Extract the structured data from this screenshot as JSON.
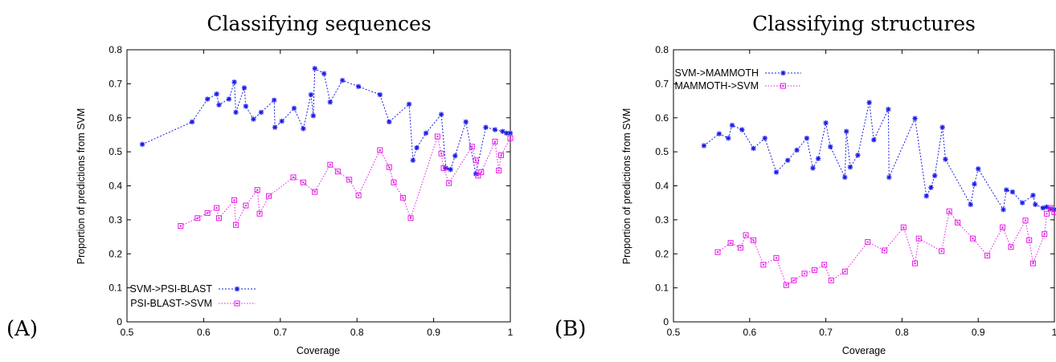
{
  "colors": {
    "series_a": "#1a1ae6",
    "series_b": "#e61ae6",
    "axis": "#000000"
  },
  "panels": [
    {
      "label": "(A)",
      "title": "Classifying sequences",
      "xlabel": "Coverage",
      "ylabel": "Proportion of predictions from SVM",
      "xlim": [
        0.5,
        1.0
      ],
      "ylim": [
        0,
        0.8
      ],
      "xticks": [
        "0.5",
        "0.6",
        "0.7",
        "0.8",
        "0.9",
        "1"
      ],
      "yticks": [
        "0",
        "0.1",
        "0.2",
        "0.3",
        "0.4",
        "0.5",
        "0.6",
        "0.7",
        "0.8"
      ],
      "legend": {
        "position": "bottom-left",
        "entries": [
          "SVM->PSI-BLAST",
          "PSI-BLAST->SVM"
        ]
      }
    },
    {
      "label": "(B)",
      "title": "Classifying structures",
      "xlabel": "Coverage",
      "ylabel": "Proportion of predictions from SVM",
      "xlim": [
        0.5,
        1.0
      ],
      "ylim": [
        0,
        0.8
      ],
      "xticks": [
        "0.5",
        "0.6",
        "0.7",
        "0.8",
        "0.9",
        "1"
      ],
      "yticks": [
        "0",
        "0.1",
        "0.2",
        "0.3",
        "0.4",
        "0.5",
        "0.6",
        "0.7",
        "0.8"
      ],
      "legend": {
        "position": "top-left",
        "entries": [
          "SVM->MAMMOTH",
          "MAMMOTH->SVM"
        ]
      }
    }
  ],
  "chart_data": [
    {
      "type": "line",
      "title": "Classifying sequences",
      "xlabel": "Coverage",
      "ylabel": "Proportion of predictions from SVM",
      "xlim": [
        0.5,
        1.0
      ],
      "ylim": [
        0,
        0.8
      ],
      "grid": false,
      "legend": "bottom-left",
      "series": [
        {
          "name": "SVM->PSI-BLAST",
          "marker": "asterisk",
          "x": [
            0.52,
            0.585,
            0.605,
            0.617,
            0.62,
            0.633,
            0.64,
            0.642,
            0.653,
            0.655,
            0.665,
            0.675,
            0.692,
            0.693,
            0.702,
            0.718,
            0.73,
            0.74,
            0.743,
            0.745,
            0.757,
            0.765,
            0.781,
            0.802,
            0.83,
            0.842,
            0.868,
            0.873,
            0.878,
            0.89,
            0.91,
            0.916,
            0.922,
            0.928,
            0.942,
            0.955,
            0.968,
            0.98,
            0.99,
            0.995,
            1.0
          ],
          "y": [
            0.522,
            0.588,
            0.655,
            0.67,
            0.638,
            0.655,
            0.705,
            0.616,
            0.688,
            0.634,
            0.596,
            0.616,
            0.652,
            0.572,
            0.59,
            0.628,
            0.568,
            0.668,
            0.606,
            0.745,
            0.73,
            0.646,
            0.71,
            0.692,
            0.668,
            0.588,
            0.64,
            0.475,
            0.512,
            0.555,
            0.61,
            0.452,
            0.448,
            0.488,
            0.588,
            0.435,
            0.572,
            0.565,
            0.56,
            0.555,
            0.555
          ]
        },
        {
          "name": "PSI-BLAST->SVM",
          "marker": "square",
          "x": [
            0.57,
            0.592,
            0.605,
            0.617,
            0.62,
            0.64,
            0.642,
            0.655,
            0.67,
            0.673,
            0.685,
            0.717,
            0.73,
            0.745,
            0.765,
            0.775,
            0.79,
            0.802,
            0.83,
            0.842,
            0.848,
            0.86,
            0.87,
            0.905,
            0.91,
            0.913,
            0.92,
            0.95,
            0.955,
            0.958,
            0.962,
            0.98,
            0.985,
            0.988,
            1.0
          ],
          "y": [
            0.282,
            0.305,
            0.32,
            0.335,
            0.305,
            0.358,
            0.285,
            0.342,
            0.388,
            0.318,
            0.37,
            0.425,
            0.41,
            0.382,
            0.462,
            0.442,
            0.418,
            0.372,
            0.505,
            0.455,
            0.41,
            0.365,
            0.305,
            0.545,
            0.495,
            0.452,
            0.408,
            0.515,
            0.475,
            0.43,
            0.44,
            0.53,
            0.445,
            0.49,
            0.54
          ]
        }
      ]
    },
    {
      "type": "line",
      "title": "Classifying structures",
      "xlabel": "Coverage",
      "ylabel": "Proportion of predictions from SVM",
      "xlim": [
        0.5,
        1.0
      ],
      "ylim": [
        0,
        0.8
      ],
      "grid": false,
      "legend": "top-left",
      "series": [
        {
          "name": "SVM->MAMMOTH",
          "marker": "asterisk",
          "x": [
            0.54,
            0.56,
            0.572,
            0.577,
            0.59,
            0.605,
            0.62,
            0.635,
            0.65,
            0.662,
            0.675,
            0.683,
            0.69,
            0.7,
            0.706,
            0.725,
            0.727,
            0.732,
            0.742,
            0.757,
            0.763,
            0.782,
            0.783,
            0.817,
            0.832,
            0.838,
            0.843,
            0.853,
            0.857,
            0.89,
            0.895,
            0.9,
            0.933,
            0.937,
            0.945,
            0.958,
            0.972,
            0.975,
            0.985,
            0.99,
            0.995,
            1.0
          ],
          "y": [
            0.518,
            0.553,
            0.54,
            0.578,
            0.565,
            0.51,
            0.54,
            0.44,
            0.475,
            0.505,
            0.54,
            0.452,
            0.48,
            0.585,
            0.515,
            0.425,
            0.56,
            0.455,
            0.49,
            0.645,
            0.535,
            0.625,
            0.425,
            0.598,
            0.37,
            0.395,
            0.43,
            0.572,
            0.478,
            0.345,
            0.405,
            0.45,
            0.33,
            0.388,
            0.382,
            0.35,
            0.372,
            0.345,
            0.335,
            0.338,
            0.332,
            0.33
          ]
        },
        {
          "name": "MAMMOTH->SVM",
          "marker": "square",
          "x": [
            0.558,
            0.575,
            0.588,
            0.595,
            0.605,
            0.618,
            0.635,
            0.648,
            0.658,
            0.672,
            0.685,
            0.698,
            0.707,
            0.725,
            0.755,
            0.777,
            0.802,
            0.817,
            0.822,
            0.852,
            0.862,
            0.873,
            0.893,
            0.912,
            0.932,
            0.943,
            0.962,
            0.967,
            0.972,
            0.987,
            0.99,
            0.995,
            1.0
          ],
          "y": [
            0.205,
            0.232,
            0.218,
            0.255,
            0.24,
            0.168,
            0.188,
            0.108,
            0.122,
            0.142,
            0.152,
            0.168,
            0.122,
            0.148,
            0.235,
            0.21,
            0.278,
            0.172,
            0.245,
            0.208,
            0.325,
            0.292,
            0.245,
            0.195,
            0.278,
            0.22,
            0.298,
            0.24,
            0.172,
            0.258,
            0.318,
            0.335,
            0.322
          ]
        }
      ]
    }
  ]
}
